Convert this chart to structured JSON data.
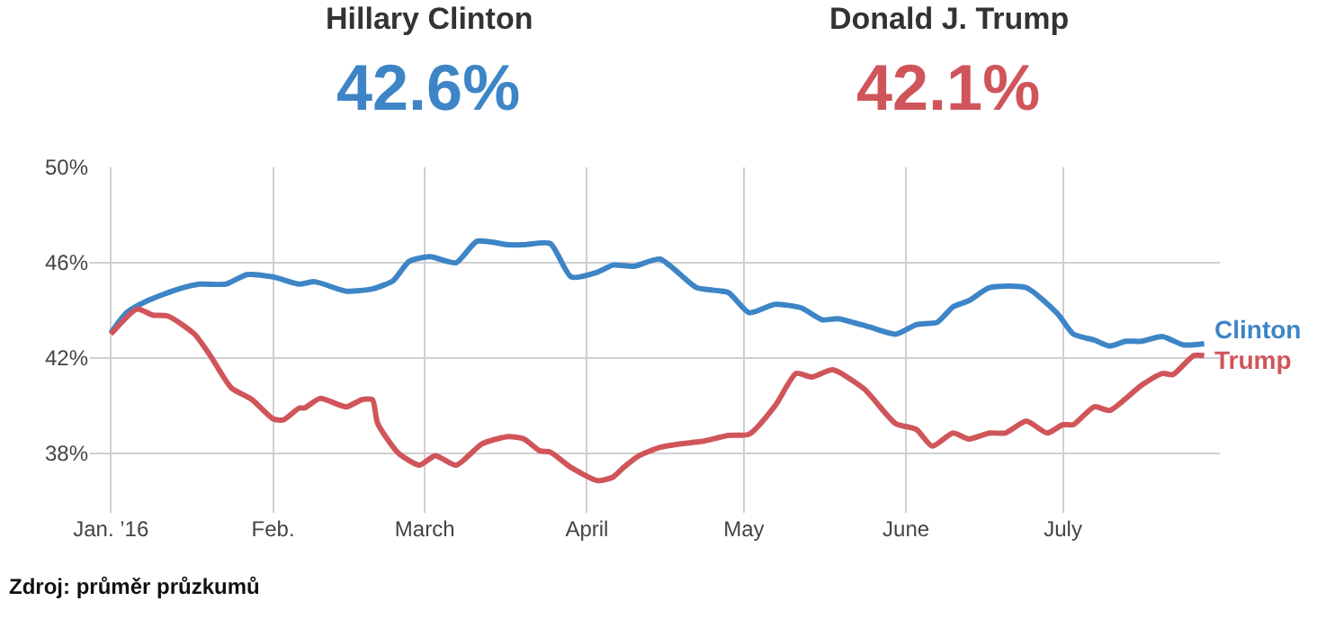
{
  "chart_data": {
    "type": "line",
    "annotations": [
      "Hillary Clinton",
      "42.6%",
      "Donald J. Trump",
      "42.1%",
      "Zdroj: průměr průzkumů"
    ],
    "series": [
      {
        "name": "Clinton",
        "color": "#3d85c6",
        "x": [
          "2016-01-01",
          "2016-01-04",
          "2016-01-08",
          "2016-01-14",
          "2016-01-18",
          "2016-01-23",
          "2016-01-27",
          "2016-02-01",
          "2016-02-06",
          "2016-02-09",
          "2016-02-15",
          "2016-02-20",
          "2016-02-24",
          "2016-02-27",
          "2016-03-02",
          "2016-03-07",
          "2016-03-11",
          "2016-03-17",
          "2016-03-20",
          "2016-03-25",
          "2016-03-29",
          "2016-04-03",
          "2016-04-06",
          "2016-04-10",
          "2016-04-15",
          "2016-04-22",
          "2016-04-28",
          "2016-05-02",
          "2016-05-07",
          "2016-05-12",
          "2016-05-16",
          "2016-05-19",
          "2016-05-25",
          "2016-05-30",
          "2016-06-03",
          "2016-06-07",
          "2016-06-10",
          "2016-06-13",
          "2016-06-17",
          "2016-06-24",
          "2016-06-30",
          "2016-07-03",
          "2016-07-07",
          "2016-07-10",
          "2016-07-13",
          "2016-07-16",
          "2016-07-20",
          "2016-07-24",
          "2016-07-28"
        ],
        "values": [
          43.05,
          43.9,
          44.4,
          44.9,
          45.1,
          45.1,
          45.5,
          45.4,
          45.1,
          45.2,
          44.8,
          44.9,
          45.25,
          46.05,
          46.25,
          46.0,
          46.9,
          46.75,
          46.75,
          46.8,
          45.4,
          45.6,
          45.9,
          45.85,
          46.15,
          44.95,
          44.75,
          43.9,
          44.25,
          44.1,
          43.6,
          43.65,
          43.3,
          43.0,
          43.4,
          43.5,
          44.15,
          44.4,
          44.95,
          44.95,
          43.85,
          43.0,
          42.75,
          42.5,
          42.7,
          42.7,
          42.9,
          42.55,
          42.6
        ]
      },
      {
        "name": "Trump",
        "color": "#d0555a",
        "x": [
          "2016-01-01",
          "2016-01-06",
          "2016-01-09",
          "2016-01-12",
          "2016-01-17",
          "2016-01-20",
          "2016-01-24",
          "2016-01-28",
          "2016-02-01",
          "2016-02-03",
          "2016-02-06",
          "2016-02-07",
          "2016-02-10",
          "2016-02-15",
          "2016-02-18",
          "2016-02-20",
          "2016-02-21",
          "2016-02-25",
          "2016-02-29",
          "2016-03-03",
          "2016-03-07",
          "2016-03-12",
          "2016-03-17",
          "2016-03-20",
          "2016-03-23",
          "2016-03-25",
          "2016-03-29",
          "2016-04-03",
          "2016-04-06",
          "2016-04-08",
          "2016-04-11",
          "2016-04-15",
          "2016-04-19",
          "2016-04-23",
          "2016-04-28",
          "2016-05-02",
          "2016-05-07",
          "2016-05-11",
          "2016-05-14",
          "2016-05-18",
          "2016-05-24",
          "2016-05-30",
          "2016-06-03",
          "2016-06-06",
          "2016-06-10",
          "2016-06-13",
          "2016-06-17",
          "2016-06-20",
          "2016-06-24",
          "2016-06-28",
          "2016-07-01",
          "2016-07-03",
          "2016-07-07",
          "2016-07-10",
          "2016-07-16",
          "2016-07-20",
          "2016-07-22",
          "2016-07-26",
          "2016-07-28"
        ],
        "values": [
          43.0,
          44.05,
          43.8,
          43.75,
          43.0,
          42.1,
          40.75,
          40.25,
          39.45,
          39.4,
          39.9,
          39.9,
          40.3,
          39.95,
          40.25,
          40.25,
          39.25,
          38.0,
          37.5,
          37.9,
          37.5,
          38.4,
          38.7,
          38.6,
          38.1,
          38.05,
          37.4,
          36.85,
          37.0,
          37.4,
          37.9,
          38.25,
          38.4,
          38.5,
          38.75,
          38.8,
          40.0,
          41.35,
          41.2,
          41.5,
          40.7,
          39.25,
          39.0,
          38.3,
          38.85,
          38.6,
          38.85,
          38.85,
          39.35,
          38.85,
          39.2,
          39.2,
          39.95,
          39.8,
          40.85,
          41.35,
          41.3,
          42.1,
          42.1
        ]
      }
    ],
    "xlim": [
      "2015-12-28",
      "2016-07-31"
    ],
    "xticks": [
      {
        "value": "2016-01-01",
        "label": "Jan. ’16"
      },
      {
        "value": "2016-02-01",
        "label": "Feb."
      },
      {
        "value": "2016-03-01",
        "label": "March"
      },
      {
        "value": "2016-04-01",
        "label": "April"
      },
      {
        "value": "2016-05-01",
        "label": "May"
      },
      {
        "value": "2016-06-01",
        "label": "June"
      },
      {
        "value": "2016-07-01",
        "label": "July"
      }
    ],
    "ylim": [
      35.5,
      50
    ],
    "yticks": [
      {
        "value": 38,
        "label": "38%"
      },
      {
        "value": 42,
        "label": "42%"
      },
      {
        "value": 46,
        "label": "46%"
      },
      {
        "value": 50,
        "label": "50%"
      }
    ],
    "grid": true,
    "legend": false,
    "line_style": "solid",
    "marker": "none"
  }
}
